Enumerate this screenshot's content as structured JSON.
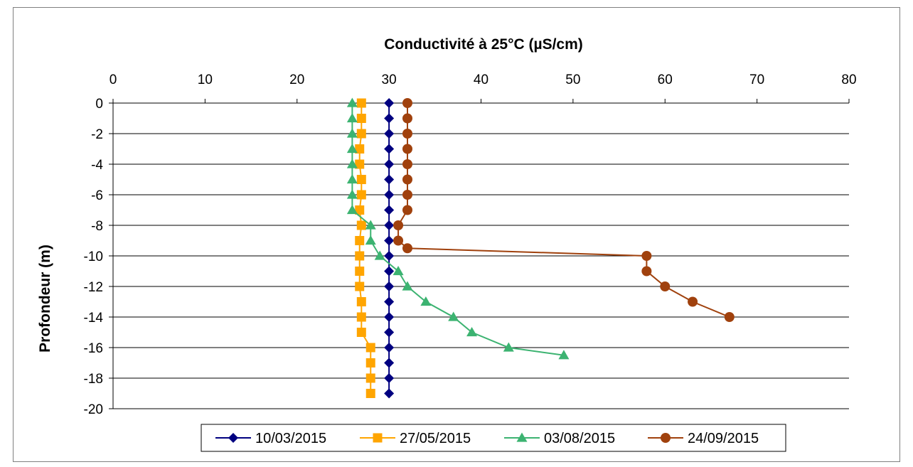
{
  "chart_data": {
    "type": "line",
    "title": "Conductivité à 25°C (µS/cm)",
    "xlabel": "",
    "ylabel": "Profondeur (m)",
    "xlim": [
      0,
      80
    ],
    "ylim": [
      -20,
      0
    ],
    "x_ticks": [
      "0",
      "10",
      "20",
      "30",
      "40",
      "50",
      "60",
      "70",
      "80"
    ],
    "y_ticks": [
      "0",
      "-2",
      "-4",
      "-6",
      "-8",
      "-10",
      "-12",
      "-14",
      "-16",
      "-18",
      "-20"
    ],
    "x_axis_position": "top",
    "grid": "horizontal",
    "legend_position": "bottom",
    "series": [
      {
        "name": "10/03/2015",
        "color": "#000080",
        "marker": "diamond",
        "points": [
          [
            30,
            0
          ],
          [
            30,
            -1
          ],
          [
            30,
            -2
          ],
          [
            30,
            -3
          ],
          [
            30,
            -4
          ],
          [
            30,
            -5
          ],
          [
            30,
            -6
          ],
          [
            30,
            -7
          ],
          [
            30,
            -8
          ],
          [
            30,
            -9
          ],
          [
            30,
            -10
          ],
          [
            30,
            -11
          ],
          [
            30,
            -12
          ],
          [
            30,
            -13
          ],
          [
            30,
            -14
          ],
          [
            30,
            -15
          ],
          [
            30,
            -16
          ],
          [
            30,
            -17
          ],
          [
            30,
            -18
          ],
          [
            30,
            -19
          ]
        ]
      },
      {
        "name": "27/05/2015",
        "color": "#FFA500",
        "marker": "square",
        "points": [
          [
            27,
            0
          ],
          [
            27,
            -1
          ],
          [
            27,
            -2
          ],
          [
            26.8,
            -3
          ],
          [
            26.8,
            -4
          ],
          [
            27,
            -5
          ],
          [
            27,
            -6
          ],
          [
            26.8,
            -7
          ],
          [
            27,
            -8
          ],
          [
            26.8,
            -9
          ],
          [
            26.8,
            -10
          ],
          [
            26.8,
            -11
          ],
          [
            26.8,
            -12
          ],
          [
            27,
            -13
          ],
          [
            27,
            -14
          ],
          [
            27,
            -15
          ],
          [
            28,
            -16
          ],
          [
            28,
            -17
          ],
          [
            28,
            -18
          ],
          [
            28,
            -19
          ]
        ]
      },
      {
        "name": "03/08/2015",
        "color": "#3CB371",
        "marker": "triangle",
        "points": [
          [
            26,
            0
          ],
          [
            26,
            -1
          ],
          [
            26,
            -2
          ],
          [
            26,
            -3
          ],
          [
            26,
            -4
          ],
          [
            26,
            -5
          ],
          [
            26,
            -6
          ],
          [
            26,
            -7
          ],
          [
            28,
            -8
          ],
          [
            28,
            -9
          ],
          [
            29,
            -10
          ],
          [
            31,
            -11
          ],
          [
            32,
            -12
          ],
          [
            34,
            -13
          ],
          [
            37,
            -14
          ],
          [
            39,
            -15
          ],
          [
            43,
            -16
          ],
          [
            49,
            -16.5
          ]
        ]
      },
      {
        "name": "24/09/2015",
        "color": "#A0410D",
        "marker": "circle",
        "points": [
          [
            32,
            0
          ],
          [
            32,
            -1
          ],
          [
            32,
            -2
          ],
          [
            32,
            -3
          ],
          [
            32,
            -4
          ],
          [
            32,
            -5
          ],
          [
            32,
            -6
          ],
          [
            32,
            -7
          ],
          [
            31,
            -8
          ],
          [
            31,
            -9
          ],
          [
            32,
            -9.5
          ],
          [
            58,
            -10
          ],
          [
            58,
            -11
          ],
          [
            60,
            -12
          ],
          [
            63,
            -13
          ],
          [
            67,
            -14
          ]
        ]
      }
    ]
  }
}
